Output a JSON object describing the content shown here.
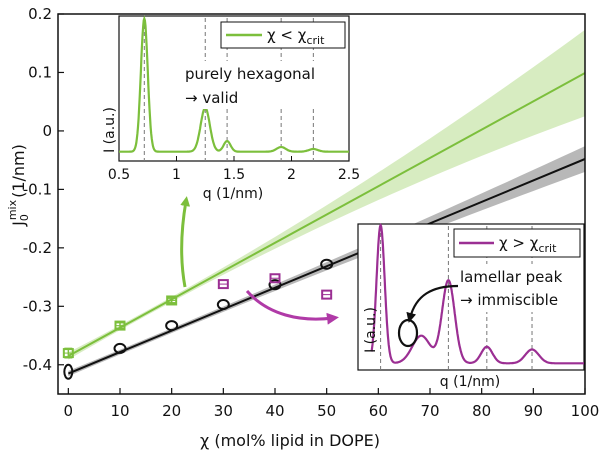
{
  "chart_data": {
    "type": "scatter",
    "xlabel": "χ (mol% lipid in DOPE)",
    "ylabel_main": "J",
    "ylabel_sup": "mix",
    "ylabel_sub": "0",
    "ylabel_unit": "(1/nm)",
    "xlim": [
      -2,
      100
    ],
    "ylim": [
      -0.45,
      0.2
    ],
    "xticks": [
      0,
      10,
      20,
      30,
      40,
      50,
      60,
      70,
      80,
      90,
      100
    ],
    "xtick_labels": [
      "0",
      "10",
      "20",
      "30",
      "40",
      "50",
      "60",
      "70",
      "80",
      "90",
      "100"
    ],
    "yticks": [
      0.2,
      0.1,
      0,
      -0.1,
      -0.2,
      -0.3,
      -0.4
    ],
    "ytick_labels": [
      "0.2",
      "0.1",
      "0",
      "-0.1",
      "-0.2",
      "-0.3",
      "-0.4"
    ],
    "colors": {
      "green": "#7cbf3c",
      "green_band": "#d7ecc1",
      "black": "#111111",
      "grey_band": "#b8b8b8",
      "purple": "#9b2f93",
      "purple_arrow": "#b03aa7"
    },
    "series": [
      {
        "name": "green squares (χ < χcrit)",
        "color": "green",
        "marker": "square",
        "x": [
          0,
          10,
          20
        ],
        "y": [
          -0.38,
          -0.333,
          -0.29
        ],
        "yerr": [
          0.008,
          0.005,
          0.004
        ]
      },
      {
        "name": "black circles",
        "color": "black",
        "marker": "circle",
        "x": [
          0,
          10,
          20,
          30,
          40,
          50
        ],
        "y": [
          -0.412,
          -0.372,
          -0.333,
          -0.297,
          -0.263,
          -0.228
        ]
      },
      {
        "name": "purple squares (χ > χcrit)",
        "color": "purple",
        "marker": "square",
        "x": [
          30,
          40,
          50
        ],
        "y": [
          -0.262,
          -0.252,
          -0.28
        ]
      }
    ],
    "fits": [
      {
        "name": "green fit",
        "color": "green",
        "band": "green_band",
        "x": [
          0,
          100
        ],
        "y": [
          -0.385,
          0.099
        ],
        "band_halfwidth_at_end": 0.07
      },
      {
        "name": "black fit",
        "color": "black",
        "band": "grey_band",
        "x": [
          0,
          100
        ],
        "y": [
          -0.415,
          -0.048
        ],
        "band_halfwidth_at_end": 0.018
      }
    ],
    "inset_top": {
      "legend": "χ < χ",
      "legend_sub": "crit",
      "annotation_line1": "purely hexagonal",
      "annotation_line2": "→ valid",
      "xlabel": "q (1/nm)",
      "ylabel": "I (a.u.)",
      "xlim": [
        0.5,
        2.5
      ],
      "xticks": [
        0.5,
        1,
        1.5,
        2,
        2.5
      ],
      "xtick_labels": [
        "0.5",
        "1",
        "1.5",
        "2",
        "2.5"
      ],
      "dashed_q": [
        0.72,
        1.25,
        1.44,
        1.91,
        2.19
      ],
      "peaks": [
        [
          0.72,
          1.0,
          0.03
        ],
        [
          1.25,
          0.33,
          0.04
        ],
        [
          1.44,
          0.08,
          0.03
        ],
        [
          1.91,
          0.035,
          0.04
        ],
        [
          2.19,
          0.02,
          0.04
        ]
      ]
    },
    "inset_bottom": {
      "legend": "χ > χ",
      "legend_sub": "crit",
      "annotation_line1": "lamellar peak",
      "annotation_line2": "→ immiscible",
      "xlabel": "q (1/nm)",
      "ylabel": "I (a.u.)",
      "dashed_frac": [
        0.1,
        0.4,
        0.57,
        0.77
      ],
      "peaks": [
        [
          0.1,
          1.0,
          0.018
        ],
        [
          0.28,
          0.2,
          0.04
        ],
        [
          0.4,
          0.6,
          0.028
        ],
        [
          0.57,
          0.12,
          0.025
        ],
        [
          0.77,
          0.1,
          0.03
        ]
      ]
    }
  }
}
